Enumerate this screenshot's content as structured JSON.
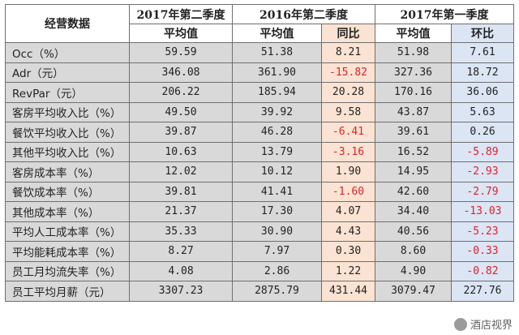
{
  "header": {
    "corner": "经营数据",
    "period_2017q2": "2017年第二季度",
    "period_2016q2": "2016年第二季度",
    "period_2017q1": "2017年第一季度",
    "avg": "平均值",
    "yoy": "同比",
    "qoq": "环比"
  },
  "rows": [
    {
      "label": "Occ（%）",
      "v2017q2": "59.59",
      "v2016q2": "51.38",
      "yoy": "8.21",
      "v2017q1": "51.98",
      "qoq": "7.61"
    },
    {
      "label": "Adr（元）",
      "v2017q2": "346.08",
      "v2016q2": "361.90",
      "yoy": "-15.82",
      "v2017q1": "327.36",
      "qoq": "18.72"
    },
    {
      "label": "RevPar（元）",
      "v2017q2": "206.22",
      "v2016q2": "185.94",
      "yoy": "20.28",
      "v2017q1": "170.16",
      "qoq": "36.06"
    },
    {
      "label": "客房平均收入比（%）",
      "v2017q2": "49.50",
      "v2016q2": "39.92",
      "yoy": "9.58",
      "v2017q1": "43.87",
      "qoq": "5.63"
    },
    {
      "label": "餐饮平均收入比（%）",
      "v2017q2": "39.87",
      "v2016q2": "46.28",
      "yoy": "-6.41",
      "v2017q1": "39.61",
      "qoq": "0.26"
    },
    {
      "label": "其他平均收入比（%）",
      "v2017q2": "10.63",
      "v2016q2": "13.79",
      "yoy": "-3.16",
      "v2017q1": "16.52",
      "qoq": "-5.89"
    },
    {
      "label": "客房成本率（%）",
      "v2017q2": "12.02",
      "v2016q2": "10.12",
      "yoy": "1.90",
      "v2017q1": "14.95",
      "qoq": "-2.93"
    },
    {
      "label": "餐饮成本率（%）",
      "v2017q2": "39.81",
      "v2016q2": "41.41",
      "yoy": "-1.60",
      "v2017q1": "42.60",
      "qoq": "-2.79"
    },
    {
      "label": "其他成本率（%）",
      "v2017q2": "21.37",
      "v2016q2": "17.30",
      "yoy": "4.07",
      "v2017q1": "34.40",
      "qoq": "-13.03"
    },
    {
      "label": "平均人工成本率（%）",
      "v2017q2": "35.33",
      "v2016q2": "30.90",
      "yoy": "4.43",
      "v2017q1": "40.56",
      "qoq": "-5.23"
    },
    {
      "label": "平均能耗成本率（%）",
      "v2017q2": "8.27",
      "v2016q2": "7.97",
      "yoy": "0.30",
      "v2017q1": "8.60",
      "qoq": "-0.33"
    },
    {
      "label": "员工月均流失率（%）",
      "v2017q2": "4.08",
      "v2016q2": "2.86",
      "yoy": "1.22",
      "v2017q1": "4.90",
      "qoq": "-0.82"
    },
    {
      "label": "员工平均月薪（元）",
      "v2017q2": "3307.23",
      "v2016q2": "2875.79",
      "yoy": "431.44",
      "v2017q1": "3079.47",
      "qoq": "227.76"
    }
  ],
  "watermark": "酒店视界",
  "colors": {
    "gray": "#d9d9d9",
    "yoy_bg": "#fbe3d3",
    "qoq_bg": "#dbe5f4",
    "negative": "#e0202a"
  }
}
